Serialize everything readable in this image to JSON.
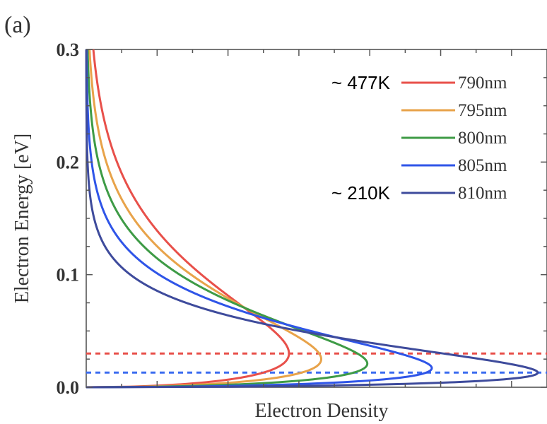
{
  "chart_data": {
    "type": "line",
    "panel_label": "(a)",
    "xlabel": "Electron Density",
    "ylabel": "Electron Energy [eV]",
    "ylim": [
      0,
      0.3
    ],
    "xlim": [
      0,
      1
    ],
    "yticks": [
      "0.0",
      "0.1",
      "0.2",
      "0.3"
    ],
    "grid": false,
    "legend_position": "top-right",
    "annotations": [
      {
        "text": "~ 477K",
        "series": "790nm"
      },
      {
        "text": "~ 210K",
        "series": "810nm"
      }
    ],
    "series": [
      {
        "name": "790nm",
        "color": "#e8504a",
        "peak_energy": 0.03,
        "peak_density": 0.44
      },
      {
        "name": "795nm",
        "color": "#e8a34a",
        "peak_energy": 0.025,
        "peak_density": 0.51
      },
      {
        "name": "800nm",
        "color": "#3e9b46",
        "peak_energy": 0.021,
        "peak_density": 0.61
      },
      {
        "name": "805nm",
        "color": "#2f55e8",
        "peak_energy": 0.017,
        "peak_density": 0.75
      },
      {
        "name": "810nm",
        "color": "#3e4b9c",
        "peak_energy": 0.013,
        "peak_density": 0.98
      }
    ],
    "reference_lines": [
      {
        "y": 0.03,
        "color": "#e8504a",
        "style": "dashed"
      },
      {
        "y": 0.013,
        "color": "#3b6cf0",
        "style": "dashed"
      }
    ]
  }
}
